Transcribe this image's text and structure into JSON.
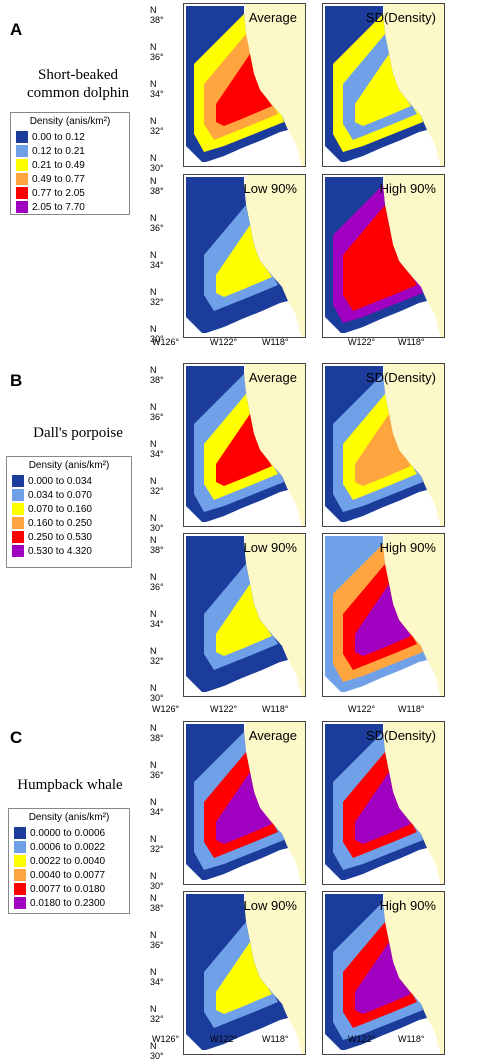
{
  "panels": [
    {
      "letter": "A",
      "species": [
        "Short-beaked",
        "common dolphin"
      ],
      "legend_title": "Density (anis/km²)",
      "legend_rows": [
        {
          "label": "0.00  to  0.12",
          "color": "#1c3c9c"
        },
        {
          "label": "0.12  to  0.21",
          "color": "#6fa0e8"
        },
        {
          "label": "0.21  to  0.49",
          "color": "#ffff00"
        },
        {
          "label": "0.49  to  0.77",
          "color": "#ffa540"
        },
        {
          "label": "0.77  to  2.05",
          "color": "#ff0000"
        },
        {
          "label": "2.05  to  7.70",
          "color": "#a000c0"
        }
      ],
      "map_titles": [
        "Average",
        "SD(Density)",
        "Low 90%",
        "High 90%"
      ]
    },
    {
      "letter": "B",
      "species": [
        "Dall's porpoise"
      ],
      "legend_title": "Density (anis/km²)",
      "legend_rows": [
        {
          "label": "0.000  to  0.034",
          "color": "#1c3c9c"
        },
        {
          "label": "0.034  to  0.070",
          "color": "#6fa0e8"
        },
        {
          "label": "0.070  to  0.160",
          "color": "#ffff00"
        },
        {
          "label": "0.160  to  0.250",
          "color": "#ffa540"
        },
        {
          "label": "0.250  to  0.530",
          "color": "#ff0000"
        },
        {
          "label": "0.530  to  4.320",
          "color": "#a000c0"
        }
      ],
      "map_titles": [
        "Average",
        "SD(Density)",
        "Low 90%",
        "High 90%"
      ]
    },
    {
      "letter": "C",
      "species": [
        "Humpback whale"
      ],
      "legend_title": "Density (anis/km²)",
      "legend_rows": [
        {
          "label": "0.0000  to  0.0006",
          "color": "#1c3c9c"
        },
        {
          "label": "0.0006  to  0.0022",
          "color": "#6fa0e8"
        },
        {
          "label": "0.0022  to  0.0040",
          "color": "#ffff00"
        },
        {
          "label": "0.0040  to  0.0077",
          "color": "#ffa540"
        },
        {
          "label": "0.0077  to  0.0180",
          "color": "#ff0000"
        },
        {
          "label": "0.0180  to  0.2300",
          "color": "#a000c0"
        }
      ],
      "map_titles": [
        "Average",
        "SD(Density)",
        "Low 90%",
        "High 90%"
      ]
    }
  ],
  "y_ticks": [
    "N 38°",
    "N 36°",
    "N 34°",
    "N 32°",
    "N 30°"
  ],
  "x_ticks_left": [
    "W126°",
    "W122°",
    "W118°"
  ],
  "x_ticks_right": [
    "W122°",
    "W118°"
  ],
  "colors": {
    "land": "#fdf8c8",
    "ocean_outside": "#ffffff",
    "frame": "#444444"
  }
}
